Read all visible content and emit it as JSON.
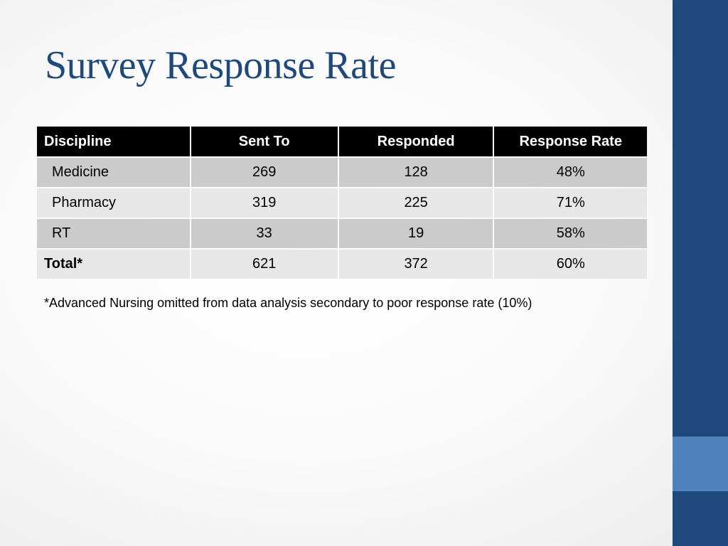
{
  "slide": {
    "title": "Survey Response Rate",
    "footnote": "*Advanced Nursing omitted from data analysis secondary to poor response rate (10%)"
  },
  "table": {
    "headers": [
      "Discipline",
      "Sent To",
      "Responded",
      "Response Rate"
    ],
    "rows": [
      {
        "discipline": "Medicine",
        "sent_to": "269",
        "responded": "128",
        "response_rate": "48%"
      },
      {
        "discipline": "Pharmacy",
        "sent_to": "319",
        "responded": "225",
        "response_rate": "71%"
      },
      {
        "discipline": "RT",
        "sent_to": "33",
        "responded": "19",
        "response_rate": "58%"
      },
      {
        "discipline": "Total*",
        "sent_to": "621",
        "responded": "372",
        "response_rate": "60%"
      }
    ]
  },
  "colors": {
    "title": "#1f497d",
    "sidebar": "#1f497d",
    "sidebar_accent": "#4f81bd",
    "header_bg": "#000000",
    "row_dark": "#cbcbcb",
    "row_light": "#e7e7e7"
  }
}
